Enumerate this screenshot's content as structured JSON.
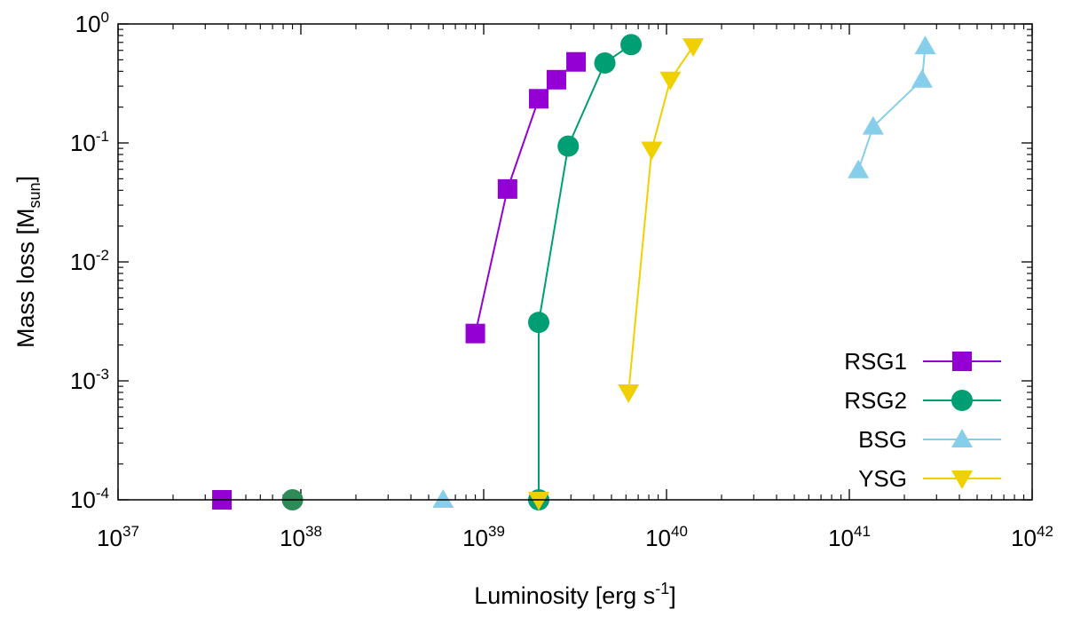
{
  "chart_data": {
    "type": "scatter",
    "title": "",
    "xlabel": {
      "base": "Luminosity [erg s",
      "sup": "-1",
      "tail": "]"
    },
    "ylabel": {
      "base": "Mass loss [M",
      "sub": "sun",
      "tail": "]"
    },
    "xscale": "log",
    "yscale": "log",
    "xlim": [
      1e+37,
      1e+42
    ],
    "ylim": [
      0.0001,
      1
    ],
    "xticks": [
      {
        "value": 1e+37,
        "base": "10",
        "exp": "37"
      },
      {
        "value": 1e+38,
        "base": "10",
        "exp": "38"
      },
      {
        "value": 1e+39,
        "base": "10",
        "exp": "39"
      },
      {
        "value": 1e+40,
        "base": "10",
        "exp": "40"
      },
      {
        "value": 1e+41,
        "base": "10",
        "exp": "41"
      },
      {
        "value": 1e+42,
        "base": "10",
        "exp": "42"
      }
    ],
    "yticks": [
      {
        "value": 0.0001,
        "base": "10",
        "exp": "-4"
      },
      {
        "value": 0.001,
        "base": "10",
        "exp": "-3"
      },
      {
        "value": 0.01,
        "base": "10",
        "exp": "-2"
      },
      {
        "value": 0.1,
        "base": "10",
        "exp": "-1"
      },
      {
        "value": 1,
        "base": "10",
        "exp": "0"
      }
    ],
    "legend_position": "bottom-right",
    "series": [
      {
        "name": "RSG1",
        "color": "#9400d3",
        "marker": "square",
        "points": [
          [
            9e+38,
            0.0025
          ],
          [
            1.35e+39,
            0.041
          ],
          [
            2e+39,
            0.235
          ],
          [
            2.5e+39,
            0.34
          ],
          [
            3.2e+39,
            0.48
          ]
        ],
        "isolated": [
          [
            3.7e+37,
            0.0001
          ]
        ]
      },
      {
        "name": "RSG2",
        "color": "#009e73",
        "marker": "circle",
        "points": [
          [
            2e+39,
            0.0001
          ],
          [
            2e+39,
            0.0031
          ],
          [
            2.9e+39,
            0.094
          ],
          [
            4.6e+39,
            0.47
          ],
          [
            6.4e+39,
            0.67
          ]
        ],
        "isolated": [
          [
            9e+37,
            0.0001
          ]
        ]
      },
      {
        "name": "BSG",
        "color": "#87ceeb",
        "marker": "triangle-up",
        "points": [
          [
            1.12e+41,
            0.059
          ],
          [
            1.35e+41,
            0.137
          ],
          [
            2.5e+41,
            0.34
          ],
          [
            2.6e+41,
            0.65
          ]
        ],
        "isolated": [
          [
            6e+38,
            0.0001
          ]
        ]
      },
      {
        "name": "YSG",
        "color": "#f0d000",
        "marker": "triangle-down",
        "points": [
          [
            6.2e+39,
            0.0008
          ],
          [
            8.3e+39,
            0.088
          ],
          [
            1.05e+40,
            0.34
          ],
          [
            1.4e+40,
            0.65
          ]
        ],
        "isolated": [
          [
            2e+39,
            0.0001
          ]
        ]
      }
    ]
  }
}
